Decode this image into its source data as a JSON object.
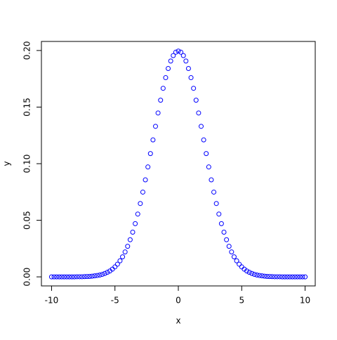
{
  "chart_data": {
    "type": "scatter",
    "xlabel": "x",
    "ylabel": "y",
    "color": "#0000ff",
    "x": [
      -10,
      -9.8,
      -9.6,
      -9.4,
      -9.2,
      -9,
      -8.8,
      -8.6,
      -8.4,
      -8.2,
      -8,
      -7.8,
      -7.6,
      -7.4,
      -7.2,
      -7,
      -6.8,
      -6.6,
      -6.4,
      -6.2,
      -6,
      -5.8,
      -5.6,
      -5.4,
      -5.2,
      -5,
      -4.8,
      -4.6,
      -4.4,
      -4.2,
      -4,
      -3.8,
      -3.6,
      -3.4,
      -3.2,
      -3,
      -2.8,
      -2.6,
      -2.4,
      -2.2,
      -2,
      -1.8,
      -1.6,
      -1.4,
      -1.2,
      -1,
      -0.8,
      -0.6,
      -0.4,
      -0.2,
      0,
      0.2,
      0.4,
      0.6,
      0.8,
      1,
      1.2,
      1.4,
      1.6,
      1.8,
      2,
      2.2,
      2.4,
      2.6,
      2.8,
      3,
      3.2,
      3.4,
      3.6,
      3.8,
      4,
      4.2,
      4.4,
      4.6,
      4.8,
      5,
      5.2,
      5.4,
      5.6,
      5.8,
      6,
      6.2,
      6.4,
      6.6,
      6.8,
      7,
      7.2,
      7.4,
      7.6,
      7.8,
      8,
      8.2,
      8.4,
      8.6,
      8.8,
      9,
      9.2,
      9.4,
      9.6,
      9.8,
      10
    ],
    "values": [
      0,
      0,
      0,
      0,
      0,
      0,
      0,
      0,
      0,
      0,
      0.0001,
      0.0001,
      0.0001,
      0.0002,
      0.0003,
      0.0004,
      0.0006,
      0.0009,
      0.0012,
      0.0016,
      0.0022,
      0.003,
      0.004,
      0.0052,
      0.0068,
      0.0088,
      0.0112,
      0.0142,
      0.0177,
      0.022,
      0.027,
      0.0328,
      0.0395,
      0.047,
      0.0555,
      0.0648,
      0.0749,
      0.0857,
      0.0971,
      0.1089,
      0.121,
      0.133,
      0.1448,
      0.1561,
      0.1666,
      0.176,
      0.1841,
      0.1907,
      0.1955,
      0.1985,
      0.1995,
      0.1985,
      0.1955,
      0.1907,
      0.1841,
      0.176,
      0.1666,
      0.1561,
      0.1448,
      0.133,
      0.121,
      0.1089,
      0.0971,
      0.0857,
      0.0749,
      0.0648,
      0.0555,
      0.047,
      0.0395,
      0.0328,
      0.027,
      0.022,
      0.0177,
      0.0142,
      0.0112,
      0.0088,
      0.0068,
      0.0052,
      0.004,
      0.003,
      0.0022,
      0.0016,
      0.0012,
      0.0009,
      0.0006,
      0.0004,
      0.0003,
      0.0002,
      0.0001,
      0.0001,
      0.0001,
      0,
      0,
      0,
      0,
      0,
      0,
      0,
      0,
      0,
      0
    ],
    "xlim": [
      -10.8,
      10.8
    ],
    "xticks": [
      -10,
      -5,
      0,
      5,
      10
    ],
    "ylim": [
      -0.008,
      0.208
    ],
    "yticks": [
      {
        "value": 0,
        "label": "0.00"
      },
      {
        "value": 0.05,
        "label": "0.05"
      },
      {
        "value": 0.1,
        "label": "0.10"
      },
      {
        "value": 0.15,
        "label": "0.15"
      },
      {
        "value": 0.2,
        "label": "0.20"
      }
    ]
  }
}
